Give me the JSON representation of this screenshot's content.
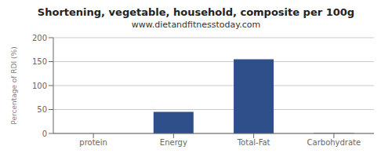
{
  "chart_data": {
    "type": "bar",
    "title": "Shortening, vegetable, household, composite per 100g",
    "subtitle": "www.dietandfitnesstoday.com",
    "categories": [
      "protein",
      "Energy",
      "Total-Fat",
      "Carbohydrate"
    ],
    "values": [
      0,
      45,
      155,
      1
    ],
    "color": "#2e4f8a",
    "ylabel": "Percentage of RDI (%)",
    "ylim": [
      0,
      200
    ],
    "yticks": [
      0,
      50,
      100,
      150,
      200
    ],
    "grid": true
  }
}
